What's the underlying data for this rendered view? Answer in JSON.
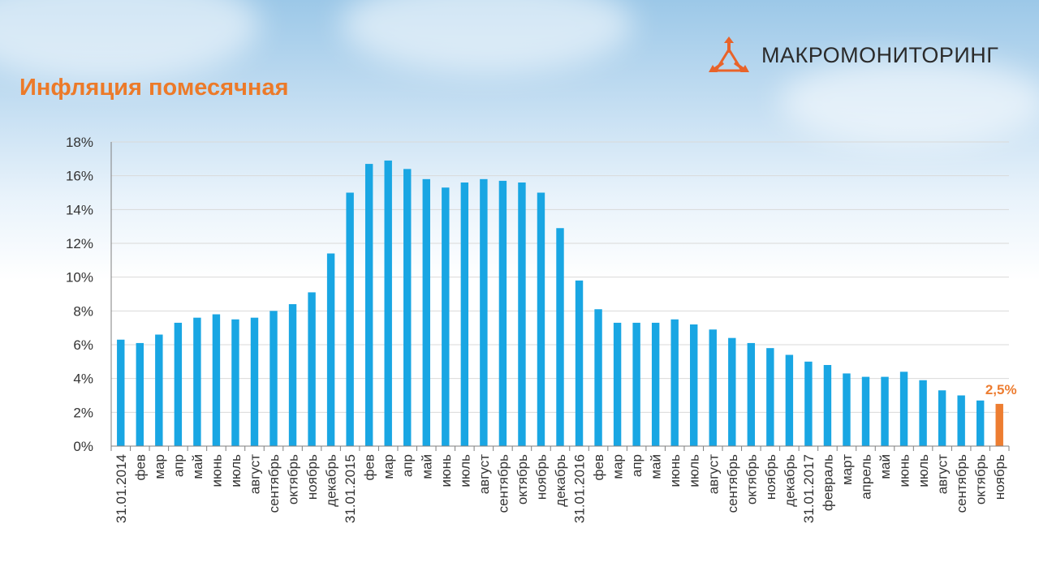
{
  "header": {
    "title": "Инфляция помесячная",
    "logo_text": "МАКРОМОНИТОРИНГ"
  },
  "colors": {
    "bar": "#19a6e3",
    "highlight": "#ed7d31",
    "title": "#ec7a29",
    "grid": "#d9d9d9",
    "axis": "#7f7f7f"
  },
  "chart_data": {
    "type": "bar",
    "title": "",
    "xlabel": "",
    "ylabel": "",
    "ylim": [
      0,
      18
    ],
    "y_ticks": [
      "0%",
      "2%",
      "4%",
      "6%",
      "8%",
      "10%",
      "12%",
      "14%",
      "16%",
      "18%"
    ],
    "grid": true,
    "categories": [
      "31.01.2014",
      "фев",
      "мар",
      "апр",
      "май",
      "июнь",
      "июль",
      "август",
      "сентябрь",
      "октябрь",
      "ноябрь",
      "декабрь",
      "31.01.2015",
      "фев",
      "мар",
      "апр",
      "май",
      "июнь",
      "июль",
      "август",
      "сентябрь",
      "октябрь",
      "ноябрь",
      "декабрь",
      "31.01.2016",
      "фев",
      "мар",
      "апр",
      "май",
      "июнь",
      "июль",
      "август",
      "сентябрь",
      "октябрь",
      "ноябрь",
      "декабрь",
      "31.01.2017",
      "февраль",
      "март",
      "апрель",
      "май",
      "июнь",
      "июль",
      "август",
      "сентябрь",
      "октябрь",
      "ноябрь"
    ],
    "values": [
      6.3,
      6.1,
      6.6,
      7.3,
      7.6,
      7.8,
      7.5,
      7.6,
      8.0,
      8.4,
      9.1,
      11.4,
      15.0,
      16.7,
      16.9,
      16.4,
      15.8,
      15.3,
      15.6,
      15.8,
      15.7,
      15.6,
      15.0,
      12.9,
      9.8,
      8.1,
      7.3,
      7.3,
      7.3,
      7.5,
      7.2,
      6.9,
      6.4,
      6.1,
      5.8,
      5.4,
      5.0,
      4.8,
      4.3,
      4.1,
      4.1,
      4.4,
      3.9,
      3.3,
      3.0,
      2.7,
      2.5
    ],
    "highlight_index": 46,
    "annotation": "2,5%"
  }
}
